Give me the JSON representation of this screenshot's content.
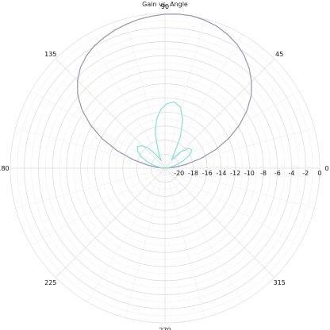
{
  "chart_data": {
    "type": "line",
    "projection": "polar",
    "title": "Gain vs. Angle",
    "angle_unit": "degrees",
    "angle_ticks": [
      0,
      45,
      90,
      135,
      180,
      225,
      270,
      315
    ],
    "radial_ticks": [
      -20,
      -18,
      -16,
      -14,
      -12,
      -10,
      -8,
      -6,
      -4,
      -2,
      0
    ],
    "rlim": [
      -22,
      0
    ],
    "grid": true,
    "legend": "none",
    "series": [
      {
        "color": "#9a9cb6",
        "theta": [
          0,
          5,
          10,
          15,
          20,
          25,
          30,
          35,
          40,
          45,
          50,
          55,
          60,
          65,
          70,
          75,
          80,
          85,
          90,
          95,
          100,
          105,
          110,
          115,
          120,
          125,
          130,
          135,
          140,
          145,
          150,
          155,
          160,
          165,
          170,
          175,
          180
        ],
        "r": [
          -22,
          -20.8,
          -19.0,
          -16.8,
          -14.4,
          -12.0,
          -9.8,
          -7.8,
          -6.0,
          -4.6,
          -3.4,
          -2.4,
          -1.6,
          -1.0,
          -0.5,
          -0.2,
          0.0,
          0.0,
          -0.1,
          -0.3,
          -0.5,
          -0.8,
          -1.1,
          -1.5,
          -1.9,
          -2.5,
          -3.3,
          -4.4,
          -5.8,
          -7.6,
          -9.8,
          -12.2,
          -14.8,
          -17.3,
          -19.5,
          -21.0,
          -22
        ]
      },
      {
        "color": "#8fe3d1",
        "theta": [
          0,
          8,
          15,
          22,
          28,
          34,
          40,
          46,
          52,
          58,
          64,
          70,
          76,
          82,
          88,
          94,
          100,
          106,
          112,
          118,
          124,
          130,
          136,
          142,
          148,
          154,
          160,
          166,
          172,
          180
        ],
        "r": [
          -22,
          -21.5,
          -20.5,
          -19.2,
          -18.0,
          -17.4,
          -17.6,
          -18.8,
          -20.5,
          -19.5,
          -17.0,
          -14.6,
          -13.0,
          -12.5,
          -12.8,
          -13.6,
          -15.0,
          -17.0,
          -19.5,
          -20.8,
          -19.6,
          -18.2,
          -17.4,
          -17.0,
          -17.4,
          -18.2,
          -19.3,
          -20.4,
          -21.3,
          -22
        ]
      }
    ]
  }
}
